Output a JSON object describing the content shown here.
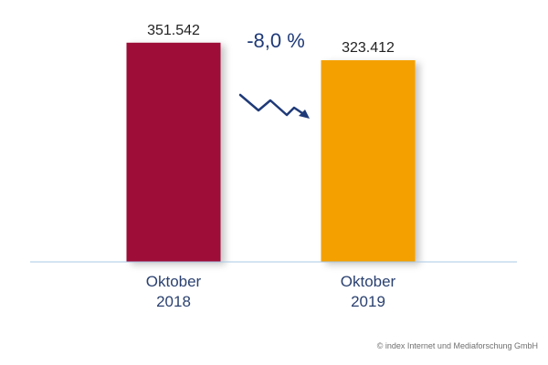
{
  "chart_data": {
    "type": "bar",
    "categories": [
      [
        "Oktober",
        "2018"
      ],
      [
        "Oktober",
        "2019"
      ]
    ],
    "values": [
      351542,
      323412
    ],
    "value_labels": [
      "351.542",
      "323.412"
    ],
    "colors": [
      "#9e1038",
      "#f4a000"
    ],
    "ylim": [
      0,
      420000
    ],
    "grid": false,
    "change_label": "-8,0 %",
    "trend_arrow": "decrease",
    "trend_arrow_color": "#1f3a78",
    "baseline_color": "#a9c8e6"
  },
  "copyright": "© index Internet und Mediaforschung GmbH"
}
